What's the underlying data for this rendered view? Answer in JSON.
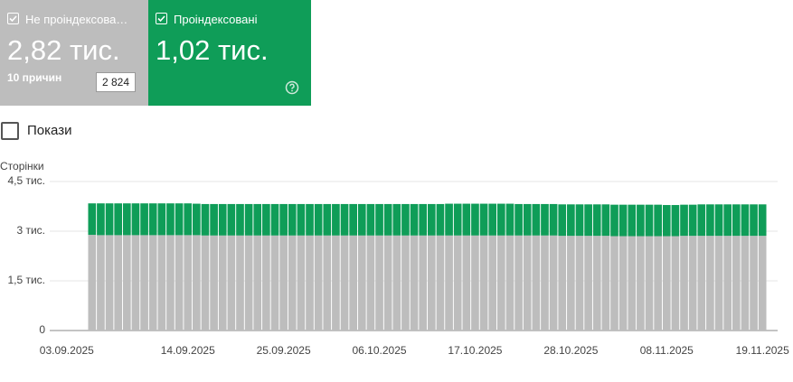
{
  "cards": [
    {
      "label": "Не проіндексова…",
      "value": "2,82 тис.",
      "sub": "10 причин",
      "tooltip": "2 824"
    },
    {
      "label": "Проіндексовані",
      "value": "1,02 тис."
    }
  ],
  "toggle": "Покази",
  "chart_data": {
    "type": "stacked-bar",
    "y_label": "Сторінки",
    "categories": [
      "03.09.2025",
      null,
      null,
      null,
      null,
      null,
      null,
      null,
      null,
      null,
      null,
      "14.09.2025",
      null,
      null,
      null,
      null,
      null,
      null,
      null,
      null,
      null,
      null,
      "25.09.2025",
      null,
      null,
      null,
      null,
      null,
      null,
      null,
      null,
      null,
      null,
      "06.10.2025",
      null,
      null,
      null,
      null,
      null,
      null,
      null,
      null,
      null,
      null,
      "17.10.2025",
      null,
      null,
      null,
      null,
      null,
      null,
      null,
      null,
      null,
      null,
      "28.10.2025",
      null,
      null,
      null,
      null,
      null,
      null,
      null,
      null,
      null,
      null,
      "08.11.2025",
      null,
      null,
      null,
      null,
      null,
      null,
      null,
      null,
      null,
      null,
      "19.11.2025"
    ],
    "series": [
      {
        "color": "#bdbdbd",
        "values": [
          2890,
          2880,
          2880,
          2880,
          2880,
          2880,
          2880,
          2880,
          2880,
          2880,
          2880,
          2880,
          2880,
          2870,
          2870,
          2870,
          2870,
          2870,
          2870,
          2870,
          2870,
          2870,
          2870,
          2870,
          2870,
          2870,
          2870,
          2870,
          2870,
          2870,
          2870,
          2870,
          2870,
          2870,
          2870,
          2870,
          2870,
          2870,
          2870,
          2870,
          2870,
          2870,
          2870,
          2870,
          2870,
          2870,
          2870,
          2870,
          2870,
          2870,
          2870,
          2870,
          2870,
          2870,
          2860,
          2860,
          2860,
          2860,
          2860,
          2860,
          2850,
          2850,
          2850,
          2850,
          2850,
          2850,
          2850,
          2850,
          2860,
          2860,
          2860,
          2860,
          2860,
          2860,
          2860,
          2860,
          2860,
          2860
        ]
      },
      {
        "color": "#0f9d58",
        "values": [
          950,
          960,
          960,
          960,
          960,
          960,
          960,
          960,
          960,
          960,
          960,
          960,
          950,
          950,
          950,
          950,
          950,
          950,
          950,
          950,
          950,
          950,
          950,
          950,
          950,
          950,
          950,
          950,
          950,
          950,
          950,
          950,
          950,
          950,
          950,
          950,
          950,
          950,
          950,
          950,
          950,
          960,
          960,
          960,
          960,
          960,
          960,
          960,
          960,
          950,
          950,
          950,
          950,
          950,
          950,
          950,
          950,
          950,
          950,
          950,
          950,
          950,
          950,
          950,
          950,
          950,
          940,
          940,
          940,
          940,
          950,
          950,
          950,
          950,
          950,
          950,
          950,
          950
        ]
      }
    ],
    "ylim": [
      0,
      4500
    ],
    "yticks": [
      0,
      {
        "value": 1500,
        "label": "1,5 тис."
      },
      {
        "value": 3000,
        "label": "3 тис."
      },
      {
        "value": 4500,
        "label": "4,5 тис."
      }
    ],
    "grid": true
  }
}
